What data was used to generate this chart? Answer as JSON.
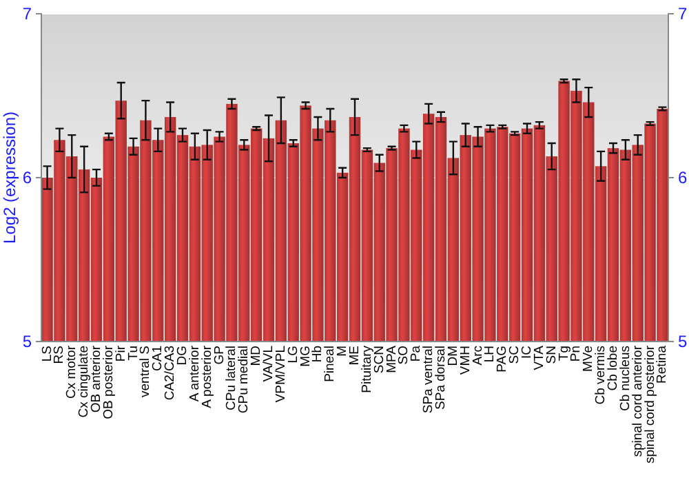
{
  "chart_data": {
    "type": "bar",
    "ylabel": "Log2 (expression)",
    "categories": [
      "LS",
      "RS",
      "Cx motor",
      "Cx cingulate",
      "OB anterior",
      "OB posterior",
      "Pir",
      "Tu",
      "ventral S",
      "CA1",
      "CA2/CA3",
      "DG",
      "A anterior",
      "A posterior",
      "GP",
      "CPu lateral",
      "CPu medial",
      "MD",
      "VA/VL",
      "VPM/VPL",
      "LG",
      "MG",
      "Hb",
      "Pineal",
      "M",
      "ME",
      "Pituitary",
      "SCN",
      "MPA",
      "SO",
      "Pa",
      "SPa ventral",
      "SPa dorsal",
      "DM",
      "VMH",
      "Arc",
      "LH",
      "PAG",
      "SC",
      "IC",
      "VTA",
      "SN",
      "Tg",
      "Pn",
      "MVe",
      "Cb vermis",
      "Cb lobe",
      "Cb nucleus",
      "spinal cord anterior",
      "spinal cord posterior",
      "Retina"
    ],
    "values": [
      6.0,
      6.23,
      6.13,
      6.05,
      6.0,
      6.25,
      6.47,
      6.19,
      6.35,
      6.23,
      6.37,
      6.26,
      6.19,
      6.2,
      6.25,
      6.45,
      6.2,
      6.3,
      6.24,
      6.35,
      6.21,
      6.44,
      6.3,
      6.35,
      6.03,
      6.37,
      6.17,
      6.09,
      6.18,
      6.3,
      6.17,
      6.39,
      6.37,
      6.12,
      6.26,
      6.25,
      6.3,
      6.31,
      6.27,
      6.3,
      6.32,
      6.13,
      6.59,
      6.53,
      6.46,
      6.07,
      6.18,
      6.17,
      6.2,
      6.33,
      6.42
    ],
    "errors": [
      0.07,
      0.07,
      0.13,
      0.14,
      0.05,
      0.02,
      0.11,
      0.05,
      0.12,
      0.07,
      0.09,
      0.04,
      0.08,
      0.09,
      0.03,
      0.03,
      0.03,
      0.01,
      0.14,
      0.14,
      0.02,
      0.02,
      0.07,
      0.07,
      0.03,
      0.11,
      0.01,
      0.05,
      0.01,
      0.02,
      0.05,
      0.06,
      0.03,
      0.1,
      0.07,
      0.06,
      0.02,
      0.01,
      0.01,
      0.03,
      0.02,
      0.08,
      0.01,
      0.07,
      0.09,
      0.09,
      0.03,
      0.06,
      0.06,
      0.01,
      0.01
    ],
    "color": "#c83c3c",
    "ylim": [
      5,
      7
    ],
    "yticks": [
      5,
      6,
      7
    ],
    "y2lim": [
      5,
      7
    ],
    "y2ticks": [
      5,
      6,
      7
    ],
    "grid": "y"
  }
}
